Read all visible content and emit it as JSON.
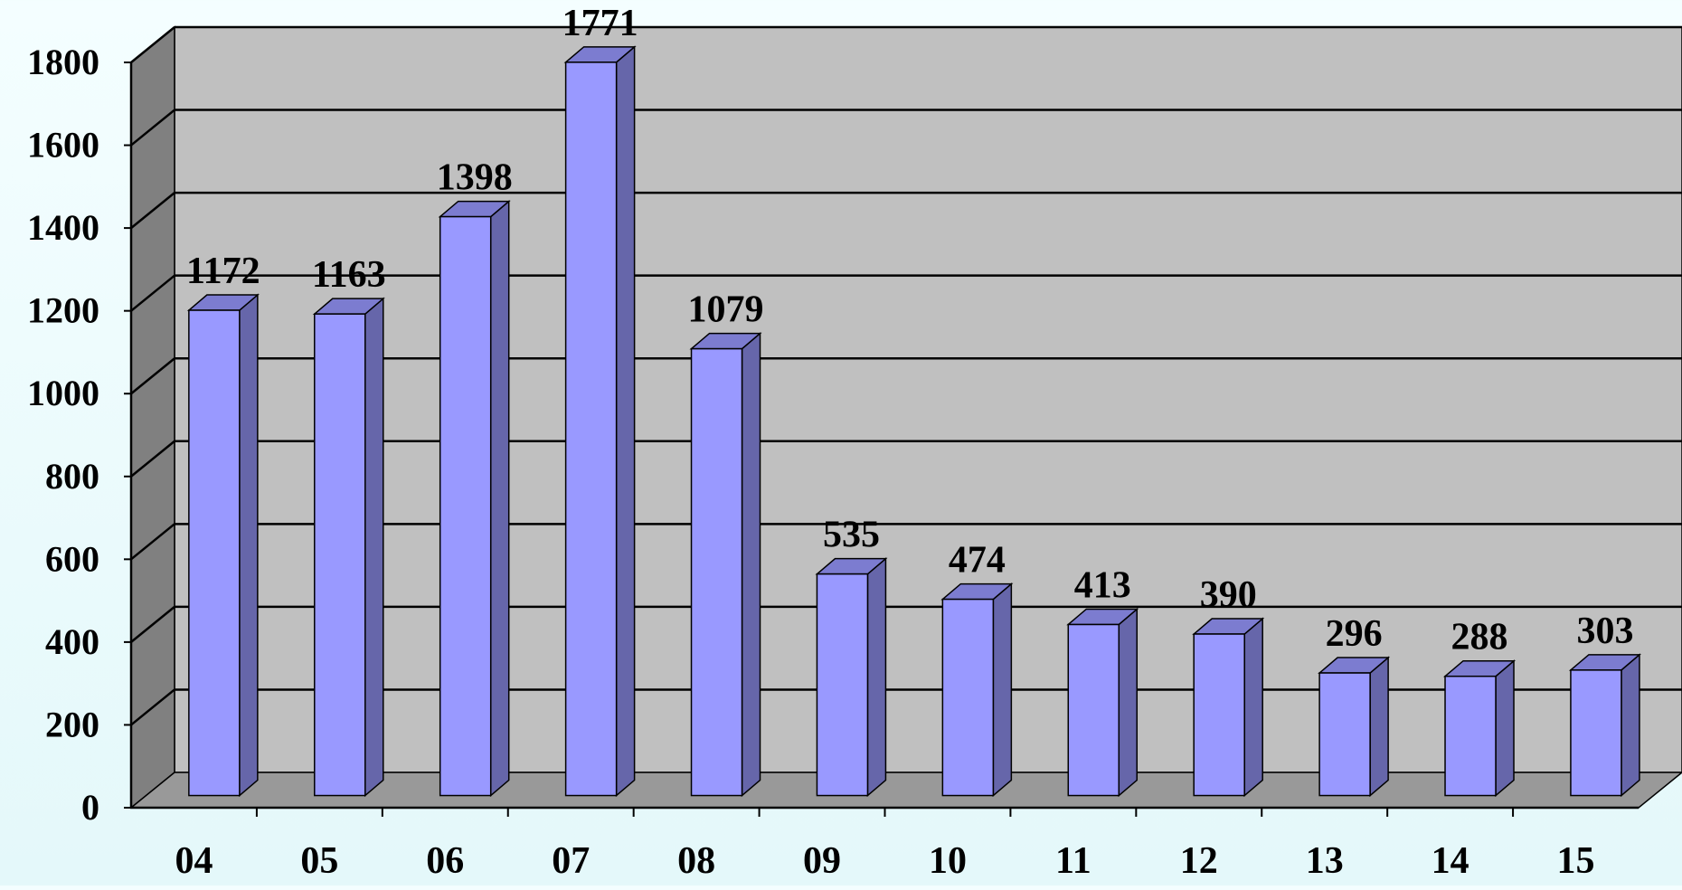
{
  "chart_data": {
    "type": "bar",
    "style": "3d-column",
    "categories": [
      "04",
      "05",
      "06",
      "07",
      "08",
      "09",
      "10",
      "11",
      "12",
      "13",
      "14",
      "15"
    ],
    "values": [
      1172,
      1163,
      1398,
      1771,
      1079,
      535,
      474,
      413,
      390,
      296,
      288,
      303
    ],
    "data_labels": [
      "1172",
      "1163",
      "1398",
      "1771",
      "1079",
      "535",
      "474",
      "413",
      "390",
      "296",
      "288",
      "303"
    ],
    "y_ticks": [
      "0",
      "200",
      "400",
      "600",
      "800",
      "1000",
      "1200",
      "1400",
      "1600",
      "1800"
    ],
    "ylim": [
      0,
      1800
    ],
    "grid": true,
    "legend": "none",
    "colors": {
      "bar_front": "#9999ff",
      "bar_side": "#6666aa",
      "bar_top": "#7c7cd0",
      "wall_back": "#c0c0c0",
      "wall_side": "#808080",
      "floor": "#999999",
      "gridline": "#000000"
    }
  }
}
